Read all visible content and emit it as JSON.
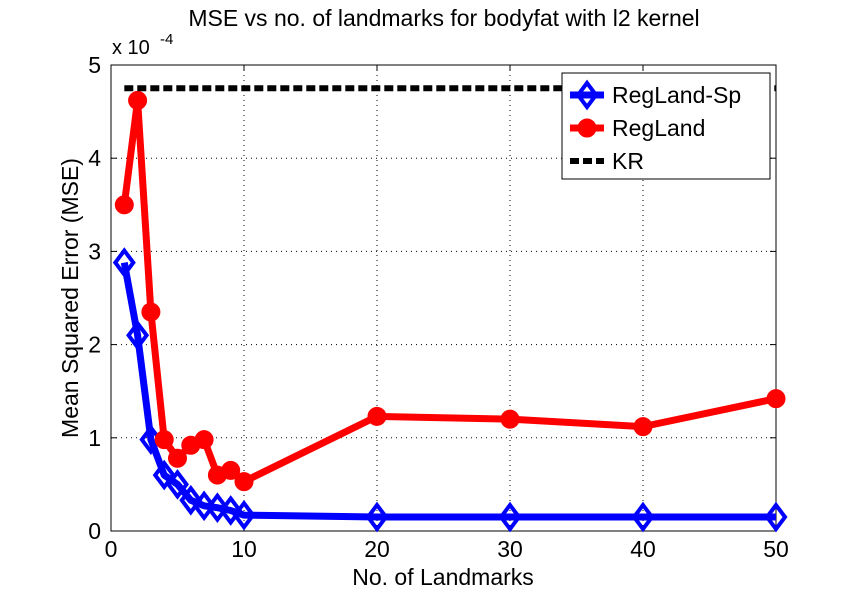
{
  "chart_data": {
    "type": "line",
    "title": "MSE vs no. of landmarks for bodyfat with l2 kernel",
    "xlabel": "No. of Landmarks",
    "ylabel": "Mean Squared Error (MSE)",
    "y_exponent_label": "x 10",
    "y_exponent": "-4",
    "xlim": [
      0,
      50
    ],
    "ylim": [
      0,
      5
    ],
    "xticks": [
      0,
      10,
      20,
      30,
      40,
      50
    ],
    "yticks": [
      0,
      1,
      2,
      3,
      4,
      5
    ],
    "grid": true,
    "legend_position": "top-right",
    "series": [
      {
        "name": "RegLand-Sp",
        "color": "#0000ff",
        "marker": "diamond",
        "x": [
          1,
          2,
          3,
          4,
          5,
          6,
          7,
          8,
          9,
          10,
          20,
          30,
          40,
          50
        ],
        "y": [
          2.88,
          2.1,
          0.98,
          0.6,
          0.5,
          0.33,
          0.27,
          0.25,
          0.22,
          0.17,
          0.15,
          0.15,
          0.15,
          0.15
        ]
      },
      {
        "name": "RegLand",
        "color": "#ff0000",
        "marker": "circle",
        "x": [
          1,
          2,
          3,
          4,
          5,
          6,
          7,
          8,
          9,
          10,
          20,
          30,
          40,
          50
        ],
        "y": [
          3.5,
          4.62,
          2.35,
          0.98,
          0.78,
          0.92,
          0.98,
          0.6,
          0.65,
          0.53,
          1.23,
          1.2,
          1.12,
          1.42
        ]
      },
      {
        "name": "KR",
        "color": "#000000",
        "marker": "none",
        "dashed": true,
        "x": [
          1,
          50
        ],
        "y": [
          4.75,
          4.75
        ]
      }
    ]
  }
}
